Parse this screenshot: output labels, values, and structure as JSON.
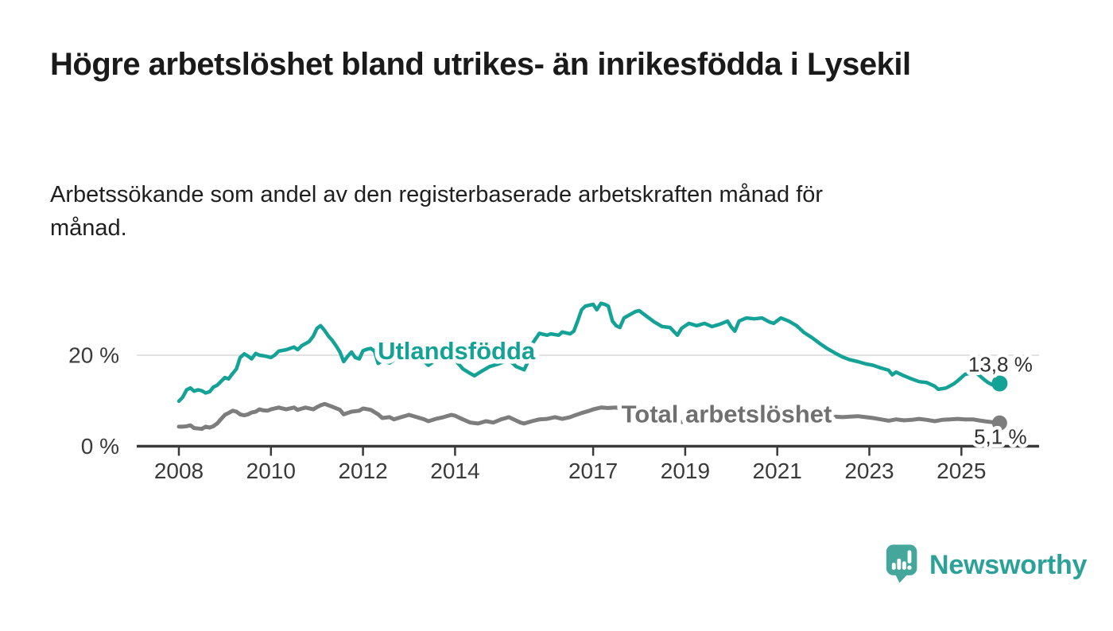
{
  "header": {
    "title": "Högre arbetslöshet bland utrikes- än inrikesfödda i Lysekil",
    "subtitle": "Arbetssökande som andel av den registerbaserade arbetskraften månad för månad."
  },
  "chart_data": {
    "type": "line",
    "unit": "%",
    "grid": "horizontal-20-only",
    "legend_position": "inline-labels-on-lines",
    "x_axis": {
      "tick_years": [
        2008,
        2010,
        2012,
        2014,
        2017,
        2019,
        2021,
        2023,
        2025
      ],
      "range": [
        2007.1,
        2026.7
      ]
    },
    "y_axis": {
      "ticks": [
        {
          "value": 20,
          "label": "20 %",
          "gridline": true
        },
        {
          "value": 0,
          "label": "0 %",
          "gridline": false
        }
      ],
      "range": [
        0,
        33
      ]
    },
    "series": [
      {
        "name": "Utlandsfödda",
        "color": "#14a296",
        "label_at": {
          "year": 2014.03,
          "value": 21.2
        },
        "end_value": 13.8,
        "end_label": "13,8 %",
        "points": [
          [
            2008.0,
            9.9
          ],
          [
            2008.08,
            10.7
          ],
          [
            2008.17,
            12.4
          ],
          [
            2008.25,
            12.8
          ],
          [
            2008.33,
            12.1
          ],
          [
            2008.42,
            12.4
          ],
          [
            2008.5,
            12.2
          ],
          [
            2008.58,
            11.7
          ],
          [
            2008.67,
            12.0
          ],
          [
            2008.75,
            13.0
          ],
          [
            2008.83,
            13.4
          ],
          [
            2008.92,
            14.3
          ],
          [
            2009.0,
            15.1
          ],
          [
            2009.08,
            14.8
          ],
          [
            2009.17,
            16.0
          ],
          [
            2009.25,
            17.0
          ],
          [
            2009.33,
            19.5
          ],
          [
            2009.42,
            20.3
          ],
          [
            2009.5,
            19.8
          ],
          [
            2009.58,
            19.2
          ],
          [
            2009.67,
            20.4
          ],
          [
            2009.75,
            20.0
          ],
          [
            2009.83,
            19.9
          ],
          [
            2009.92,
            19.7
          ],
          [
            2010.0,
            19.5
          ],
          [
            2010.08,
            20.0
          ],
          [
            2010.17,
            20.9
          ],
          [
            2010.33,
            21.2
          ],
          [
            2010.5,
            21.8
          ],
          [
            2010.58,
            21.2
          ],
          [
            2010.67,
            22.1
          ],
          [
            2010.83,
            23.0
          ],
          [
            2010.92,
            24.2
          ],
          [
            2011.0,
            25.9
          ],
          [
            2011.08,
            26.5
          ],
          [
            2011.17,
            25.4
          ],
          [
            2011.25,
            24.2
          ],
          [
            2011.33,
            23.3
          ],
          [
            2011.42,
            22.0
          ],
          [
            2011.5,
            20.7
          ],
          [
            2011.58,
            18.6
          ],
          [
            2011.67,
            19.8
          ],
          [
            2011.75,
            20.7
          ],
          [
            2011.83,
            19.5
          ],
          [
            2011.92,
            19.2
          ],
          [
            2012.0,
            21.0
          ],
          [
            2012.08,
            21.3
          ],
          [
            2012.17,
            21.5
          ],
          [
            2012.25,
            20.9
          ],
          [
            2012.33,
            18.2
          ],
          [
            2012.42,
            18.8
          ],
          [
            2012.58,
            18.3
          ],
          [
            2012.75,
            19.5
          ],
          [
            2012.92,
            20.0
          ],
          [
            2013.08,
            20.3
          ],
          [
            2013.25,
            19.3
          ],
          [
            2013.42,
            17.8
          ],
          [
            2013.58,
            18.9
          ],
          [
            2013.75,
            19.8
          ],
          [
            2013.92,
            20.1
          ],
          [
            2014.0,
            19.0
          ],
          [
            2014.17,
            17.0
          ],
          [
            2014.33,
            16.0
          ],
          [
            2014.42,
            15.5
          ],
          [
            2014.58,
            16.5
          ],
          [
            2014.75,
            17.5
          ],
          [
            2014.92,
            18.0
          ],
          [
            2015.0,
            18.3
          ],
          [
            2015.17,
            19.0
          ],
          [
            2015.33,
            17.5
          ],
          [
            2015.5,
            16.8
          ],
          [
            2015.58,
            18.5
          ],
          [
            2015.67,
            22.4
          ],
          [
            2015.83,
            24.8
          ],
          [
            2016.0,
            24.4
          ],
          [
            2016.08,
            24.7
          ],
          [
            2016.25,
            24.4
          ],
          [
            2016.33,
            25.1
          ],
          [
            2016.5,
            24.7
          ],
          [
            2016.58,
            25.3
          ],
          [
            2016.67,
            27.7
          ],
          [
            2016.75,
            30.0
          ],
          [
            2016.83,
            30.8
          ],
          [
            2016.92,
            31.0
          ],
          [
            2017.0,
            31.2
          ],
          [
            2017.08,
            30.0
          ],
          [
            2017.17,
            31.4
          ],
          [
            2017.25,
            31.2
          ],
          [
            2017.33,
            30.8
          ],
          [
            2017.42,
            27.5
          ],
          [
            2017.5,
            26.5
          ],
          [
            2017.58,
            26.1
          ],
          [
            2017.67,
            28.2
          ],
          [
            2017.83,
            29.1
          ],
          [
            2017.92,
            29.6
          ],
          [
            2018.0,
            29.8
          ],
          [
            2018.17,
            28.5
          ],
          [
            2018.33,
            27.3
          ],
          [
            2018.5,
            26.3
          ],
          [
            2018.67,
            26.1
          ],
          [
            2018.83,
            24.4
          ],
          [
            2018.92,
            25.9
          ],
          [
            2019.08,
            27.0
          ],
          [
            2019.25,
            26.5
          ],
          [
            2019.42,
            27.0
          ],
          [
            2019.58,
            26.3
          ],
          [
            2019.75,
            26.8
          ],
          [
            2019.92,
            27.5
          ],
          [
            2020.0,
            26.2
          ],
          [
            2020.08,
            25.3
          ],
          [
            2020.17,
            27.5
          ],
          [
            2020.33,
            28.2
          ],
          [
            2020.5,
            28.0
          ],
          [
            2020.67,
            28.2
          ],
          [
            2020.83,
            27.3
          ],
          [
            2020.92,
            27.0
          ],
          [
            2021.08,
            28.2
          ],
          [
            2021.25,
            27.5
          ],
          [
            2021.42,
            26.5
          ],
          [
            2021.58,
            25.0
          ],
          [
            2021.75,
            23.9
          ],
          [
            2021.92,
            22.6
          ],
          [
            2022.08,
            21.5
          ],
          [
            2022.25,
            20.5
          ],
          [
            2022.42,
            19.6
          ],
          [
            2022.58,
            19.0
          ],
          [
            2022.75,
            18.6
          ],
          [
            2022.92,
            18.1
          ],
          [
            2023.08,
            17.8
          ],
          [
            2023.25,
            17.2
          ],
          [
            2023.42,
            16.7
          ],
          [
            2023.5,
            15.7
          ],
          [
            2023.58,
            16.3
          ],
          [
            2023.75,
            15.5
          ],
          [
            2023.92,
            14.8
          ],
          [
            2024.08,
            14.2
          ],
          [
            2024.25,
            14.0
          ],
          [
            2024.42,
            13.2
          ],
          [
            2024.5,
            12.5
          ],
          [
            2024.67,
            12.8
          ],
          [
            2024.83,
            13.7
          ],
          [
            2024.92,
            14.4
          ],
          [
            2025.0,
            15.1
          ],
          [
            2025.08,
            15.8
          ],
          [
            2025.17,
            16.0
          ],
          [
            2025.25,
            16.5
          ],
          [
            2025.33,
            16.1
          ],
          [
            2025.42,
            15.3
          ],
          [
            2025.5,
            14.6
          ],
          [
            2025.58,
            14.0
          ],
          [
            2025.67,
            13.5
          ],
          [
            2025.75,
            13.4
          ],
          [
            2025.83,
            13.8
          ]
        ]
      },
      {
        "name": "Total arbetslöshet",
        "color": "#7d7d7d",
        "label_color": "#707070",
        "label_at": {
          "year": 2019.9,
          "value": 7.3
        },
        "end_value": 5.1,
        "end_label": "5,1 %",
        "points": [
          [
            2008.0,
            4.3
          ],
          [
            2008.08,
            4.3
          ],
          [
            2008.17,
            4.4
          ],
          [
            2008.25,
            4.6
          ],
          [
            2008.33,
            4.0
          ],
          [
            2008.42,
            3.9
          ],
          [
            2008.5,
            3.8
          ],
          [
            2008.58,
            4.3
          ],
          [
            2008.67,
            4.1
          ],
          [
            2008.75,
            4.4
          ],
          [
            2008.83,
            5.0
          ],
          [
            2008.92,
            6.0
          ],
          [
            2009.0,
            6.9
          ],
          [
            2009.08,
            7.3
          ],
          [
            2009.17,
            7.8
          ],
          [
            2009.25,
            7.6
          ],
          [
            2009.33,
            7.0
          ],
          [
            2009.42,
            6.8
          ],
          [
            2009.5,
            7.0
          ],
          [
            2009.58,
            7.4
          ],
          [
            2009.67,
            7.6
          ],
          [
            2009.75,
            8.1
          ],
          [
            2009.83,
            7.9
          ],
          [
            2009.92,
            7.8
          ],
          [
            2010.0,
            8.1
          ],
          [
            2010.17,
            8.5
          ],
          [
            2010.33,
            8.1
          ],
          [
            2010.5,
            8.5
          ],
          [
            2010.58,
            8.0
          ],
          [
            2010.75,
            8.5
          ],
          [
            2010.92,
            8.1
          ],
          [
            2011.0,
            8.6
          ],
          [
            2011.08,
            9.0
          ],
          [
            2011.17,
            9.3
          ],
          [
            2011.33,
            8.7
          ],
          [
            2011.5,
            8.0
          ],
          [
            2011.58,
            7.0
          ],
          [
            2011.75,
            7.6
          ],
          [
            2011.92,
            7.8
          ],
          [
            2012.0,
            8.3
          ],
          [
            2012.17,
            8.0
          ],
          [
            2012.33,
            7.0
          ],
          [
            2012.42,
            6.2
          ],
          [
            2012.58,
            6.4
          ],
          [
            2012.67,
            5.9
          ],
          [
            2012.83,
            6.4
          ],
          [
            2013.0,
            6.9
          ],
          [
            2013.17,
            6.4
          ],
          [
            2013.33,
            5.9
          ],
          [
            2013.42,
            5.5
          ],
          [
            2013.58,
            6.0
          ],
          [
            2013.75,
            6.4
          ],
          [
            2013.92,
            6.9
          ],
          [
            2014.0,
            6.7
          ],
          [
            2014.17,
            5.9
          ],
          [
            2014.33,
            5.2
          ],
          [
            2014.5,
            5.0
          ],
          [
            2014.67,
            5.5
          ],
          [
            2014.83,
            5.2
          ],
          [
            2015.0,
            5.9
          ],
          [
            2015.17,
            6.4
          ],
          [
            2015.25,
            6.0
          ],
          [
            2015.42,
            5.2
          ],
          [
            2015.5,
            5.0
          ],
          [
            2015.67,
            5.5
          ],
          [
            2015.83,
            5.9
          ],
          [
            2016.0,
            6.0
          ],
          [
            2016.17,
            6.4
          ],
          [
            2016.33,
            6.0
          ],
          [
            2016.5,
            6.4
          ],
          [
            2016.58,
            6.7
          ],
          [
            2016.75,
            7.3
          ],
          [
            2016.92,
            7.8
          ],
          [
            2017.0,
            8.1
          ],
          [
            2017.17,
            8.5
          ],
          [
            2017.33,
            8.4
          ],
          [
            2017.5,
            8.5
          ],
          [
            2017.67,
            8.0
          ],
          [
            2017.83,
            7.2
          ],
          [
            2018.0,
            6.4
          ],
          [
            2018.17,
            5.8
          ],
          [
            2018.33,
            5.4
          ],
          [
            2018.5,
            5.2
          ],
          [
            2018.67,
            5.2
          ],
          [
            2018.83,
            5.3
          ],
          [
            2019.0,
            5.4
          ],
          [
            2019.25,
            5.5
          ],
          [
            2019.5,
            5.6
          ],
          [
            2019.75,
            5.8
          ],
          [
            2020.0,
            6.2
          ],
          [
            2020.17,
            7.0
          ],
          [
            2020.33,
            7.6
          ],
          [
            2020.5,
            7.8
          ],
          [
            2020.75,
            7.7
          ],
          [
            2021.0,
            7.5
          ],
          [
            2021.25,
            7.3
          ],
          [
            2021.5,
            7.0
          ],
          [
            2021.75,
            6.8
          ],
          [
            2022.0,
            6.6
          ],
          [
            2022.25,
            6.5
          ],
          [
            2022.42,
            6.4
          ],
          [
            2022.58,
            6.5
          ],
          [
            2022.75,
            6.6
          ],
          [
            2022.92,
            6.4
          ],
          [
            2023.08,
            6.2
          ],
          [
            2023.25,
            5.9
          ],
          [
            2023.42,
            5.6
          ],
          [
            2023.58,
            5.9
          ],
          [
            2023.75,
            5.7
          ],
          [
            2023.92,
            5.8
          ],
          [
            2024.08,
            6.0
          ],
          [
            2024.25,
            5.8
          ],
          [
            2024.42,
            5.5
          ],
          [
            2024.58,
            5.8
          ],
          [
            2024.75,
            5.9
          ],
          [
            2024.92,
            6.0
          ],
          [
            2025.08,
            5.9
          ],
          [
            2025.25,
            5.9
          ],
          [
            2025.42,
            5.6
          ],
          [
            2025.58,
            5.4
          ],
          [
            2025.75,
            5.2
          ],
          [
            2025.83,
            5.1
          ]
        ]
      }
    ],
    "colors": {
      "axis": "#3a3a3a",
      "gridline": "#d9d9d9",
      "tick_label": "#3a3a3a",
      "value_label": "#2e2e2e"
    }
  },
  "footer": {
    "brand": "Newsworthy",
    "brand_color": "#2ba197",
    "logo_icon": "bar-chart-speech-bubble-icon"
  }
}
